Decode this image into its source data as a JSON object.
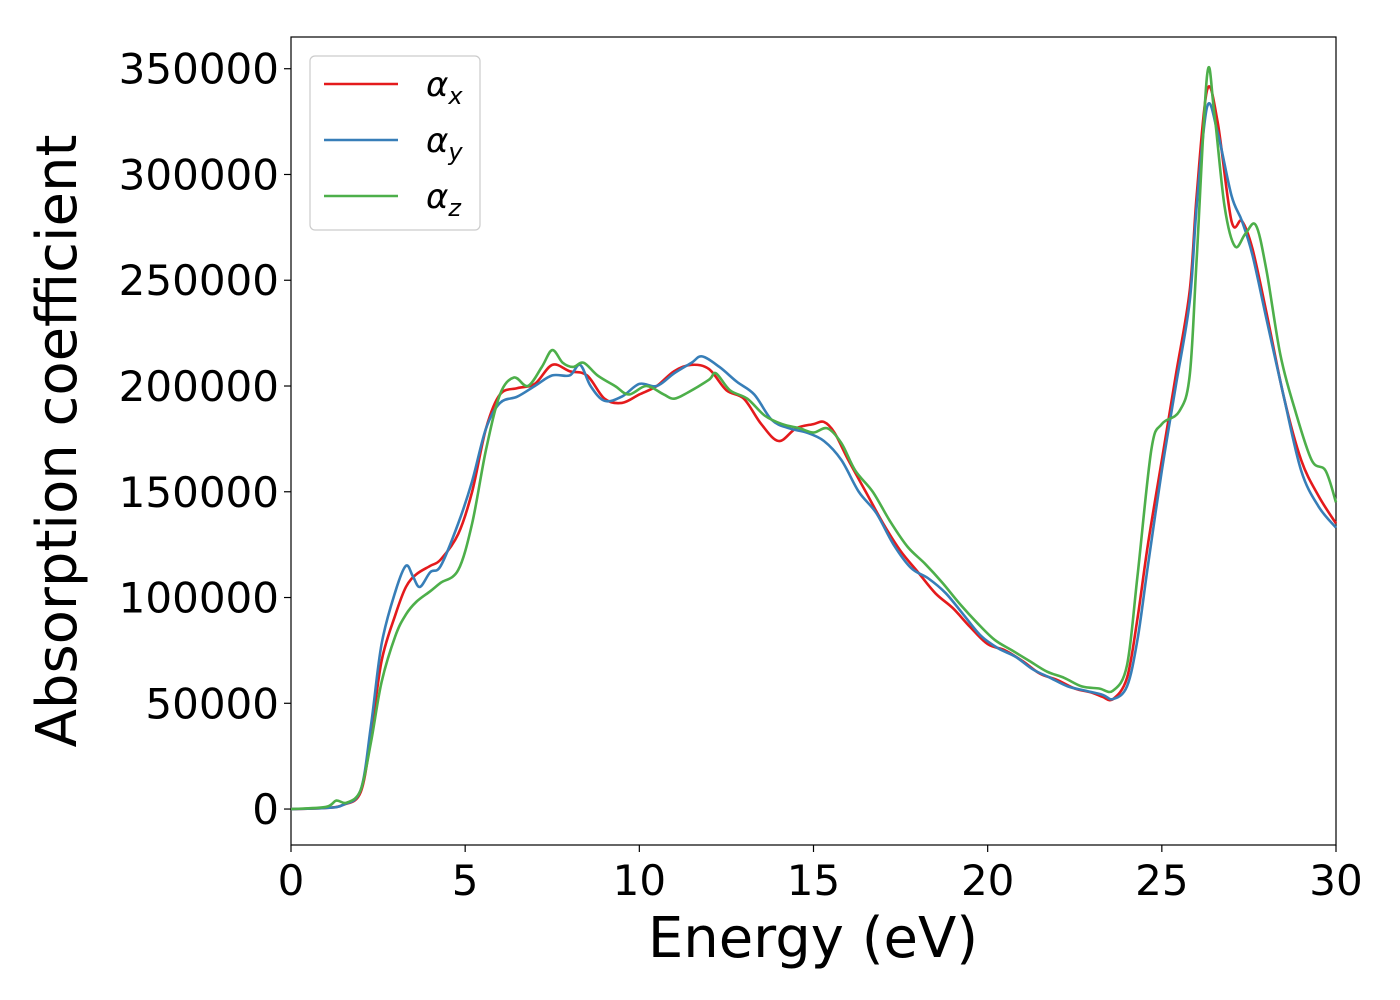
{
  "chart_data": {
    "type": "line",
    "xlabel": "Energy (eV)",
    "ylabel": "Absorption coefficient",
    "xlim": [
      0,
      30
    ],
    "ylim": [
      -17000,
      365000
    ],
    "x_ticks": [
      0,
      5,
      10,
      15,
      20,
      25,
      30
    ],
    "y_ticks": [
      0,
      50000,
      100000,
      150000,
      200000,
      250000,
      300000,
      350000
    ],
    "grid": false,
    "legend_position": "top-left",
    "series": [
      {
        "name": "α_x",
        "label_main": "α",
        "label_sub": "x",
        "color": "#e41a1c",
        "points": [
          [
            0,
            0
          ],
          [
            1,
            500
          ],
          [
            1.5,
            2000
          ],
          [
            2,
            8000
          ],
          [
            2.3,
            35000
          ],
          [
            2.6,
            70000
          ],
          [
            3.0,
            92000
          ],
          [
            3.3,
            105000
          ],
          [
            3.6,
            111000
          ],
          [
            4.0,
            115000
          ],
          [
            4.3,
            118000
          ],
          [
            4.8,
            130000
          ],
          [
            5.2,
            150000
          ],
          [
            5.6,
            180000
          ],
          [
            6.0,
            196000
          ],
          [
            6.5,
            199000
          ],
          [
            7.0,
            201000
          ],
          [
            7.5,
            210000
          ],
          [
            8.0,
            207000
          ],
          [
            8.5,
            205000
          ],
          [
            9.0,
            194000
          ],
          [
            9.5,
            192000
          ],
          [
            10.0,
            196000
          ],
          [
            10.5,
            200000
          ],
          [
            11.0,
            207000
          ],
          [
            11.5,
            210000
          ],
          [
            12.0,
            208000
          ],
          [
            12.5,
            198000
          ],
          [
            13.0,
            194000
          ],
          [
            13.5,
            182000
          ],
          [
            14.0,
            174000
          ],
          [
            14.5,
            180000
          ],
          [
            15.0,
            182000
          ],
          [
            15.3,
            183000
          ],
          [
            15.6,
            178000
          ],
          [
            16.0,
            165000
          ],
          [
            16.5,
            150000
          ],
          [
            17.0,
            135000
          ],
          [
            17.5,
            122000
          ],
          [
            18.0,
            112000
          ],
          [
            18.5,
            102000
          ],
          [
            19.0,
            95000
          ],
          [
            19.5,
            86000
          ],
          [
            20.0,
            78000
          ],
          [
            20.5,
            75000
          ],
          [
            21.0,
            70000
          ],
          [
            21.5,
            64000
          ],
          [
            22.0,
            61000
          ],
          [
            22.5,
            57000
          ],
          [
            23.0,
            55000
          ],
          [
            23.3,
            53000
          ],
          [
            23.6,
            52000
          ],
          [
            24.0,
            62000
          ],
          [
            24.3,
            90000
          ],
          [
            24.6,
            125000
          ],
          [
            25.0,
            165000
          ],
          [
            25.4,
            205000
          ],
          [
            25.8,
            245000
          ],
          [
            26.0,
            290000
          ],
          [
            26.3,
            340000
          ],
          [
            26.6,
            325000
          ],
          [
            27.0,
            278000
          ],
          [
            27.3,
            278000
          ],
          [
            27.6,
            265000
          ],
          [
            28.0,
            235000
          ],
          [
            28.5,
            195000
          ],
          [
            29.0,
            165000
          ],
          [
            29.5,
            148000
          ],
          [
            30.0,
            135000
          ]
        ]
      },
      {
        "name": "α_y",
        "label_main": "α",
        "label_sub": "y",
        "color": "#377eb8",
        "points": [
          [
            0,
            0
          ],
          [
            1,
            500
          ],
          [
            1.5,
            2000
          ],
          [
            2,
            9000
          ],
          [
            2.3,
            40000
          ],
          [
            2.6,
            78000
          ],
          [
            3.0,
            103000
          ],
          [
            3.3,
            115000
          ],
          [
            3.5,
            110000
          ],
          [
            3.7,
            105000
          ],
          [
            4.0,
            112000
          ],
          [
            4.3,
            115000
          ],
          [
            4.8,
            135000
          ],
          [
            5.2,
            155000
          ],
          [
            5.6,
            180000
          ],
          [
            6.0,
            192000
          ],
          [
            6.5,
            195000
          ],
          [
            7.0,
            200000
          ],
          [
            7.5,
            205000
          ],
          [
            8.0,
            205000
          ],
          [
            8.3,
            210000
          ],
          [
            8.6,
            200000
          ],
          [
            9.0,
            193000
          ],
          [
            9.5,
            195000
          ],
          [
            10.0,
            201000
          ],
          [
            10.5,
            200000
          ],
          [
            11.0,
            206000
          ],
          [
            11.5,
            211000
          ],
          [
            11.8,
            214000
          ],
          [
            12.3,
            209000
          ],
          [
            12.8,
            202000
          ],
          [
            13.3,
            196000
          ],
          [
            13.8,
            184000
          ],
          [
            14.3,
            180000
          ],
          [
            14.8,
            178000
          ],
          [
            15.3,
            174000
          ],
          [
            15.8,
            165000
          ],
          [
            16.3,
            150000
          ],
          [
            16.8,
            140000
          ],
          [
            17.3,
            125000
          ],
          [
            17.8,
            114000
          ],
          [
            18.3,
            109000
          ],
          [
            18.8,
            102000
          ],
          [
            19.3,
            92000
          ],
          [
            19.8,
            82000
          ],
          [
            20.3,
            76000
          ],
          [
            20.8,
            72000
          ],
          [
            21.3,
            66000
          ],
          [
            21.8,
            62000
          ],
          [
            22.3,
            58000
          ],
          [
            22.8,
            56000
          ],
          [
            23.3,
            54000
          ],
          [
            23.6,
            52000
          ],
          [
            24.0,
            58000
          ],
          [
            24.3,
            80000
          ],
          [
            24.6,
            115000
          ],
          [
            25.0,
            160000
          ],
          [
            25.4,
            200000
          ],
          [
            25.8,
            240000
          ],
          [
            26.0,
            285000
          ],
          [
            26.3,
            332000
          ],
          [
            26.6,
            320000
          ],
          [
            27.0,
            290000
          ],
          [
            27.3,
            278000
          ],
          [
            27.6,
            262000
          ],
          [
            28.0,
            232000
          ],
          [
            28.5,
            195000
          ],
          [
            29.0,
            160000
          ],
          [
            29.5,
            143000
          ],
          [
            30.0,
            133000
          ]
        ]
      },
      {
        "name": "α_z",
        "label_main": "α",
        "label_sub": "z",
        "color": "#4daf4a",
        "points": [
          [
            0,
            0
          ],
          [
            1,
            1000
          ],
          [
            1.3,
            4000
          ],
          [
            1.6,
            3000
          ],
          [
            2,
            9000
          ],
          [
            2.3,
            32000
          ],
          [
            2.6,
            60000
          ],
          [
            3.0,
            82000
          ],
          [
            3.3,
            92000
          ],
          [
            3.6,
            98000
          ],
          [
            4.0,
            103000
          ],
          [
            4.3,
            107000
          ],
          [
            4.8,
            113000
          ],
          [
            5.2,
            135000
          ],
          [
            5.6,
            170000
          ],
          [
            6.0,
            196000
          ],
          [
            6.4,
            204000
          ],
          [
            6.8,
            200000
          ],
          [
            7.2,
            209000
          ],
          [
            7.5,
            217000
          ],
          [
            7.8,
            211000
          ],
          [
            8.1,
            209000
          ],
          [
            8.4,
            211000
          ],
          [
            8.8,
            205000
          ],
          [
            9.3,
            200000
          ],
          [
            9.7,
            196000
          ],
          [
            10.2,
            200000
          ],
          [
            10.7,
            196000
          ],
          [
            11.0,
            194000
          ],
          [
            11.4,
            197000
          ],
          [
            12.0,
            203000
          ],
          [
            12.2,
            206000
          ],
          [
            12.6,
            198000
          ],
          [
            13.1,
            194000
          ],
          [
            13.6,
            186000
          ],
          [
            14.1,
            182000
          ],
          [
            14.6,
            180000
          ],
          [
            15.0,
            178000
          ],
          [
            15.4,
            180000
          ],
          [
            15.8,
            173000
          ],
          [
            16.2,
            160000
          ],
          [
            16.7,
            150000
          ],
          [
            17.2,
            136000
          ],
          [
            17.7,
            124000
          ],
          [
            18.2,
            116000
          ],
          [
            18.7,
            107000
          ],
          [
            19.2,
            97000
          ],
          [
            19.7,
            88000
          ],
          [
            20.2,
            80000
          ],
          [
            20.7,
            75000
          ],
          [
            21.2,
            70000
          ],
          [
            21.7,
            65000
          ],
          [
            22.2,
            62000
          ],
          [
            22.7,
            58000
          ],
          [
            23.2,
            57000
          ],
          [
            23.6,
            56000
          ],
          [
            24.0,
            68000
          ],
          [
            24.3,
            110000
          ],
          [
            24.7,
            170000
          ],
          [
            25.0,
            182000
          ],
          [
            25.5,
            188000
          ],
          [
            25.8,
            205000
          ],
          [
            26.0,
            260000
          ],
          [
            26.3,
            347000
          ],
          [
            26.5,
            330000
          ],
          [
            26.8,
            285000
          ],
          [
            27.1,
            266000
          ],
          [
            27.4,
            272000
          ],
          [
            27.7,
            276000
          ],
          [
            28.0,
            255000
          ],
          [
            28.4,
            215000
          ],
          [
            28.8,
            190000
          ],
          [
            29.3,
            165000
          ],
          [
            29.7,
            160000
          ],
          [
            30.0,
            145000
          ]
        ]
      }
    ]
  }
}
